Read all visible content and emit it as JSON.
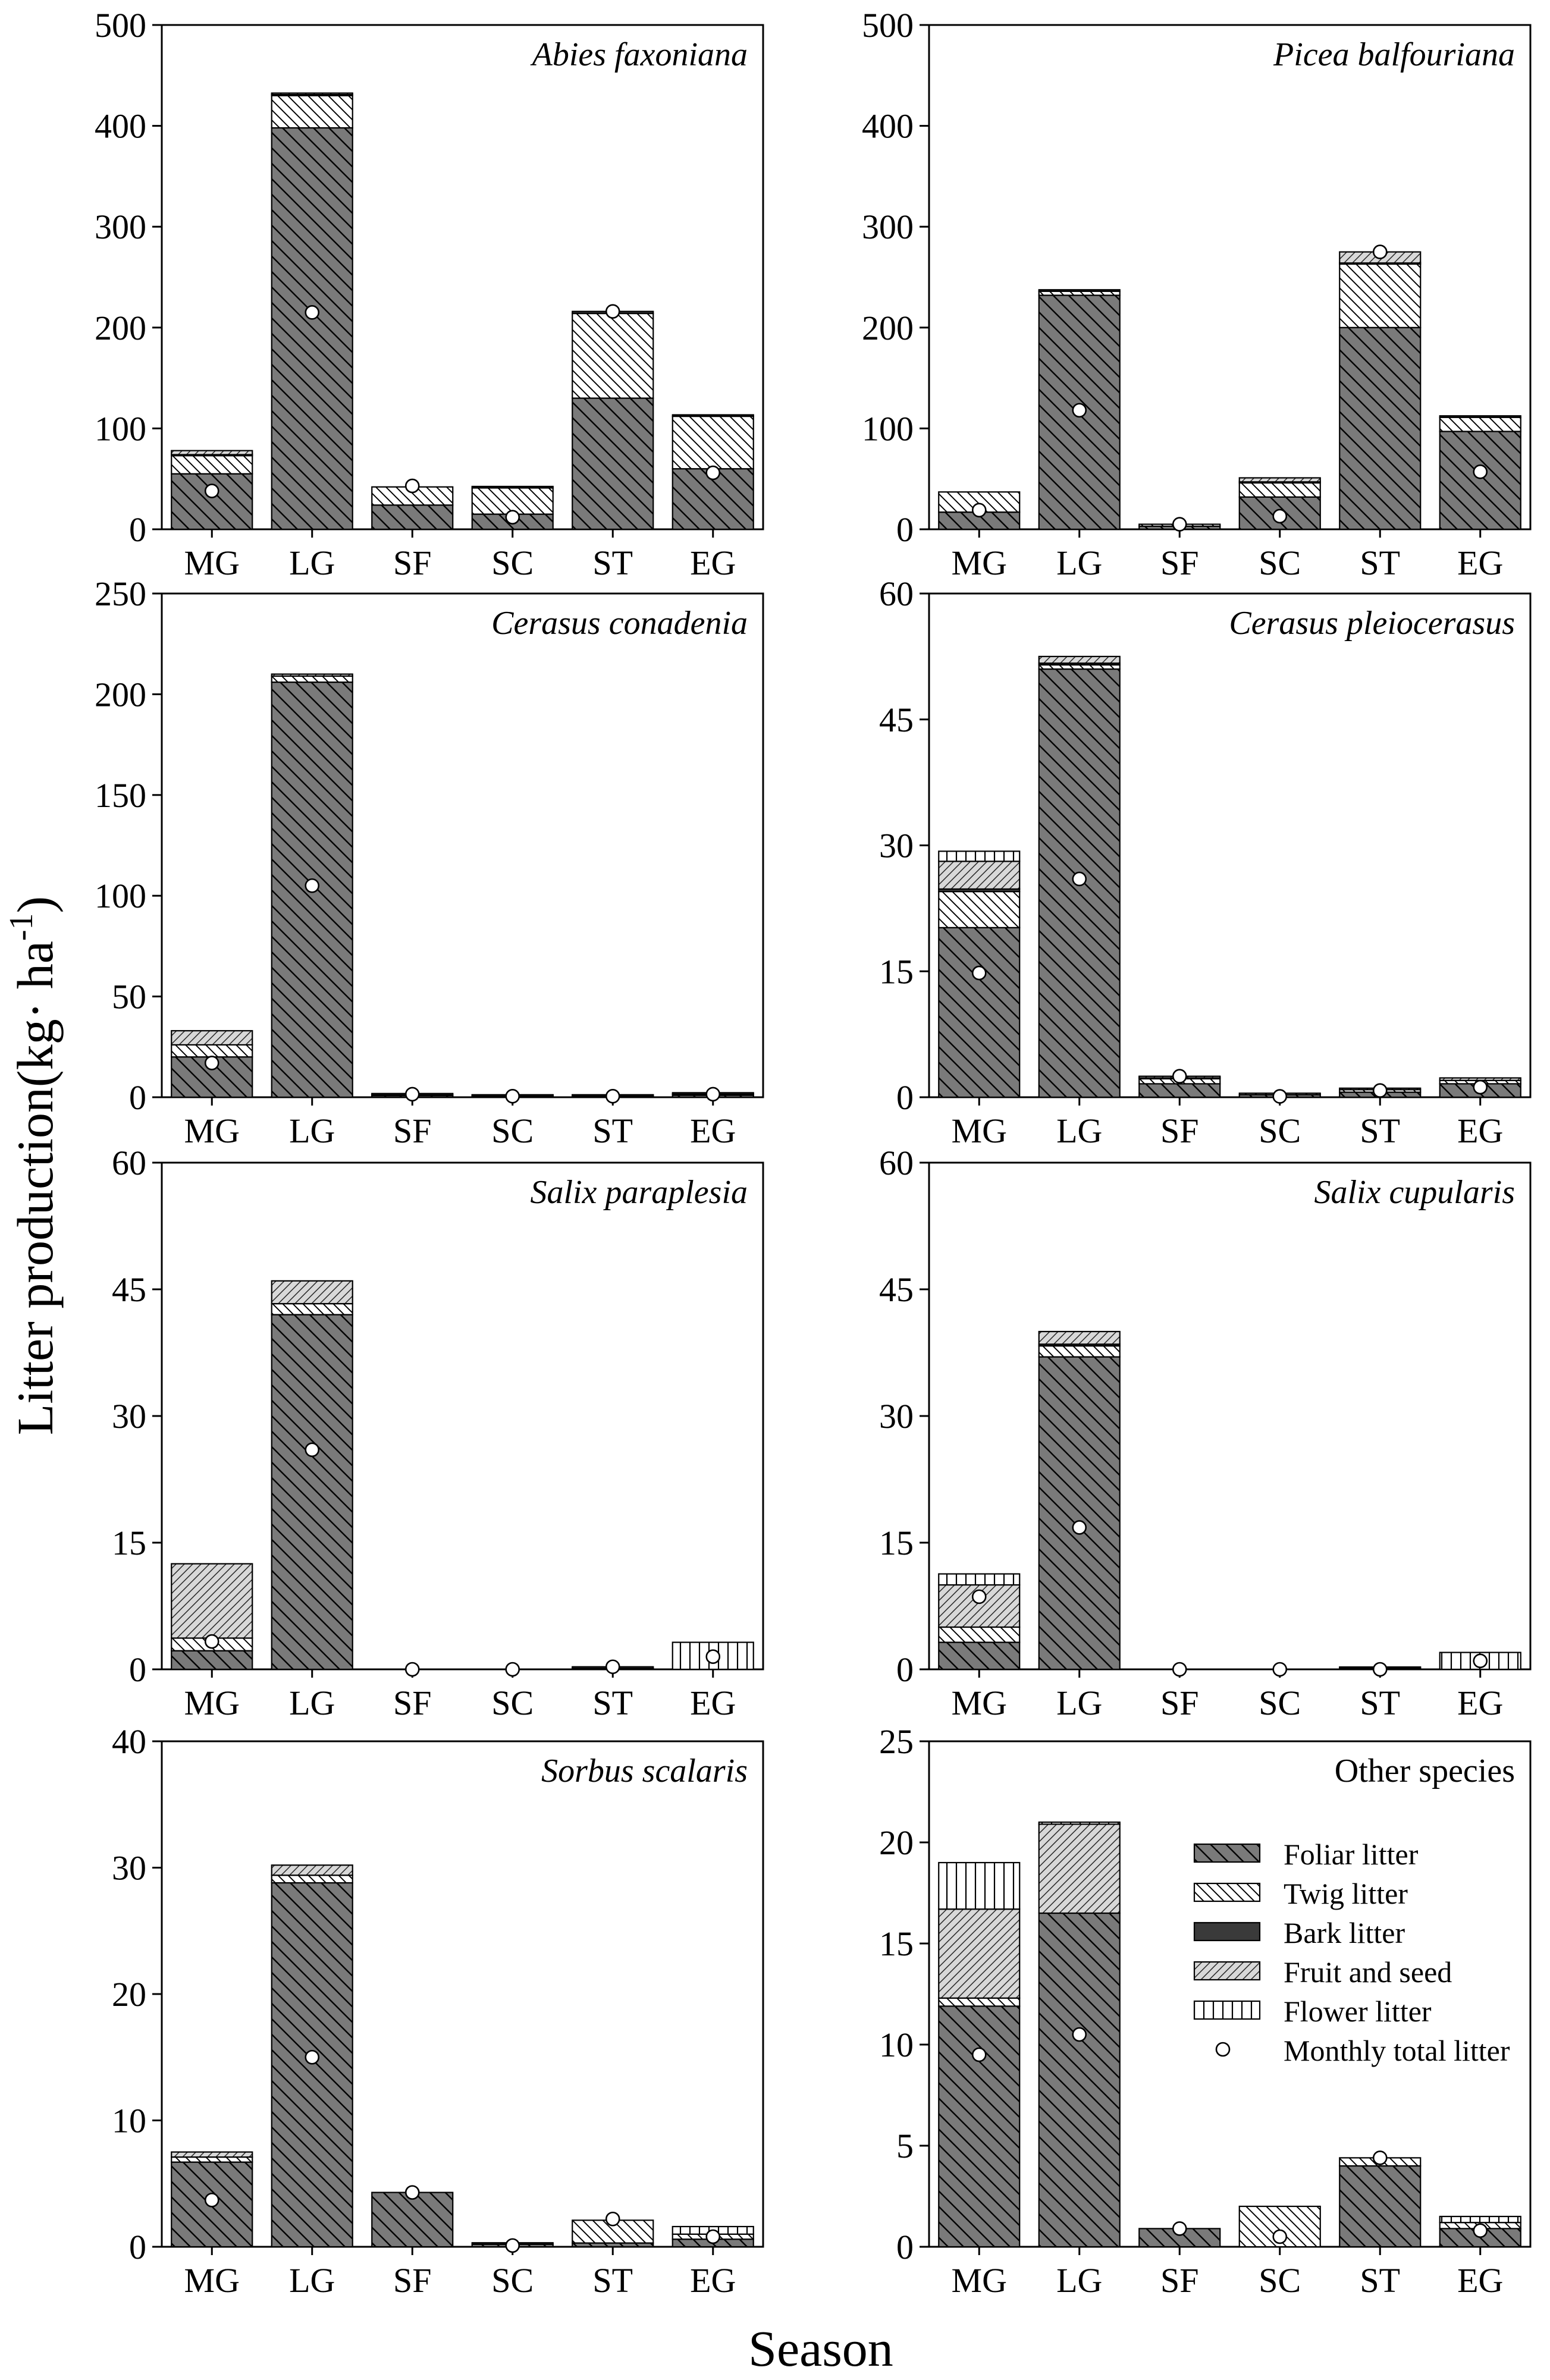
{
  "figure": {
    "ylabel": "Litter production(kg· ha-1)",
    "ylabel_main": "Litter production(kg· ha",
    "ylabel_sup": "-1",
    "ylabel_close": ")",
    "xlabel": "Season"
  },
  "colors": {
    "foliar": "#7a7a7a",
    "bark": "#3a3a3a",
    "fruit_bg": "#d8d8d8",
    "axis": "#000000"
  },
  "legend": {
    "items": [
      {
        "key": "foliar",
        "label": "Foliar litter"
      },
      {
        "key": "twig",
        "label": "Twig litter"
      },
      {
        "key": "bark",
        "label": "Bark litter"
      },
      {
        "key": "fruit",
        "label": "Fruit and seed"
      },
      {
        "key": "flower",
        "label": "Flower litter"
      },
      {
        "key": "total",
        "label": "Monthly total litter"
      }
    ]
  },
  "chart_data": [
    {
      "type": "bar",
      "stacked": true,
      "title": "Abies faxoniana",
      "italic": true,
      "categories": [
        "MG",
        "LG",
        "SF",
        "SC",
        "ST",
        "EG"
      ],
      "ylim": [
        0,
        500
      ],
      "yticks": [
        0,
        100,
        200,
        300,
        400,
        500
      ],
      "series": [
        {
          "name": "Foliar litter",
          "key": "foliar",
          "values": [
            55,
            398,
            24,
            15,
            130,
            60
          ]
        },
        {
          "name": "Twig litter",
          "key": "twig",
          "values": [
            18,
            32,
            18,
            26,
            84,
            52
          ]
        },
        {
          "name": "Bark litter",
          "key": "bark",
          "values": [
            1,
            1,
            0,
            1,
            2,
            1
          ]
        },
        {
          "name": "Fruit and seed",
          "key": "fruit",
          "values": [
            4,
            1,
            0,
            0,
            0,
            0
          ]
        },
        {
          "name": "Flower litter",
          "key": "flower",
          "values": [
            0,
            0,
            0,
            0,
            0,
            0
          ]
        }
      ],
      "monthly_total": [
        38,
        215,
        43,
        12,
        216,
        56
      ],
      "legend": false
    },
    {
      "type": "bar",
      "stacked": true,
      "title": "Picea balfouriana",
      "italic": true,
      "categories": [
        "MG",
        "LG",
        "SF",
        "SC",
        "ST",
        "EG"
      ],
      "ylim": [
        0,
        500
      ],
      "yticks": [
        0,
        100,
        200,
        300,
        400,
        500
      ],
      "series": [
        {
          "name": "Foliar litter",
          "key": "foliar",
          "values": [
            17,
            232,
            3,
            32,
            200,
            97
          ]
        },
        {
          "name": "Twig litter",
          "key": "twig",
          "values": [
            20,
            4,
            2,
            14,
            63,
            14
          ]
        },
        {
          "name": "Bark litter",
          "key": "bark",
          "values": [
            0,
            1,
            0,
            1,
            1,
            1
          ]
        },
        {
          "name": "Fruit and seed",
          "key": "fruit",
          "values": [
            0,
            0,
            0,
            4,
            11,
            0
          ]
        },
        {
          "name": "Flower litter",
          "key": "flower",
          "values": [
            0,
            0,
            0,
            0,
            0,
            0
          ]
        }
      ],
      "monthly_total": [
        19,
        118,
        5,
        13,
        275,
        57
      ],
      "legend": false
    },
    {
      "type": "bar",
      "stacked": true,
      "title": "Cerasus conadenia",
      "italic": true,
      "categories": [
        "MG",
        "LG",
        "SF",
        "SC",
        "ST",
        "EG"
      ],
      "ylim": [
        0,
        250
      ],
      "yticks": [
        0,
        50,
        100,
        150,
        200,
        250
      ],
      "series": [
        {
          "name": "Foliar litter",
          "key": "foliar",
          "values": [
            20,
            206,
            0.8,
            0.4,
            0.4,
            1.0
          ]
        },
        {
          "name": "Twig litter",
          "key": "twig",
          "values": [
            6,
            3,
            0.3,
            0.1,
            0.1,
            0.5
          ]
        },
        {
          "name": "Bark litter",
          "key": "bark",
          "values": [
            0,
            0,
            0.2,
            0.1,
            0.1,
            0.5
          ]
        },
        {
          "name": "Fruit and seed",
          "key": "fruit",
          "values": [
            7,
            1,
            0,
            0,
            0,
            0
          ]
        },
        {
          "name": "Flower litter",
          "key": "flower",
          "values": [
            0,
            0,
            0,
            0,
            0,
            0
          ]
        }
      ],
      "monthly_total": [
        17,
        105,
        1.5,
        0.5,
        0.5,
        1.5
      ],
      "legend": false
    },
    {
      "type": "bar",
      "stacked": true,
      "title": "Cerasus pleiocerasus",
      "italic": true,
      "categories": [
        "MG",
        "LG",
        "SF",
        "SC",
        "ST",
        "EG"
      ],
      "ylim": [
        0,
        60
      ],
      "yticks": [
        0,
        15,
        30,
        45,
        60
      ],
      "series": [
        {
          "name": "Foliar litter",
          "key": "foliar",
          "values": [
            20.2,
            51,
            1.6,
            0.3,
            0.6,
            1.6
          ]
        },
        {
          "name": "Twig litter",
          "key": "twig",
          "values": [
            4.3,
            0.5,
            0.6,
            0.1,
            0.3,
            0.4
          ]
        },
        {
          "name": "Bark litter",
          "key": "bark",
          "values": [
            0.3,
            0.2,
            0.1,
            0,
            0,
            0
          ]
        },
        {
          "name": "Fruit and seed",
          "key": "fruit",
          "values": [
            3.3,
            0.8,
            0.2,
            0,
            0.1,
            0.3
          ]
        },
        {
          "name": "Flower litter",
          "key": "flower",
          "values": [
            1.2,
            0,
            0,
            0,
            0,
            0
          ]
        }
      ],
      "monthly_total": [
        14.8,
        26,
        2.5,
        0.1,
        0.8,
        1.2
      ],
      "legend": false
    },
    {
      "type": "bar",
      "stacked": true,
      "title": "Salix paraplesia",
      "italic": true,
      "categories": [
        "MG",
        "LG",
        "SF",
        "SC",
        "ST",
        "EG"
      ],
      "ylim": [
        0,
        60
      ],
      "yticks": [
        0,
        15,
        30,
        45,
        60
      ],
      "series": [
        {
          "name": "Foliar litter",
          "key": "foliar",
          "values": [
            2.2,
            42,
            0,
            0,
            0.1,
            0
          ]
        },
        {
          "name": "Twig litter",
          "key": "twig",
          "values": [
            1.5,
            1.3,
            0,
            0,
            0,
            0
          ]
        },
        {
          "name": "Bark litter",
          "key": "bark",
          "values": [
            0,
            0,
            0,
            0,
            0.2,
            0
          ]
        },
        {
          "name": "Fruit and seed",
          "key": "fruit",
          "values": [
            8.8,
            2.7,
            0,
            0,
            0,
            0
          ]
        },
        {
          "name": "Flower litter",
          "key": "flower",
          "values": [
            0,
            0,
            0,
            0,
            0,
            3.2
          ]
        }
      ],
      "monthly_total": [
        3.3,
        26,
        0,
        0,
        0.3,
        1.5
      ],
      "legend": false
    },
    {
      "type": "bar",
      "stacked": true,
      "title": "Salix cupularis",
      "italic": true,
      "categories": [
        "MG",
        "LG",
        "SF",
        "SC",
        "ST",
        "EG"
      ],
      "ylim": [
        0,
        60
      ],
      "yticks": [
        0,
        15,
        30,
        45,
        60
      ],
      "series": [
        {
          "name": "Foliar litter",
          "key": "foliar",
          "values": [
            3.2,
            37,
            0,
            0,
            0.1,
            0
          ]
        },
        {
          "name": "Twig litter",
          "key": "twig",
          "values": [
            1.8,
            1.3,
            0,
            0,
            0,
            0
          ]
        },
        {
          "name": "Bark litter",
          "key": "bark",
          "values": [
            0,
            0.2,
            0,
            0,
            0.1,
            0
          ]
        },
        {
          "name": "Fruit and seed",
          "key": "fruit",
          "values": [
            5,
            1.5,
            0,
            0,
            0,
            0
          ]
        },
        {
          "name": "Flower litter",
          "key": "flower",
          "values": [
            1.3,
            0,
            0,
            0,
            0,
            2.0
          ]
        }
      ],
      "monthly_total": [
        8.6,
        16.8,
        0,
        0,
        0,
        1.0
      ],
      "legend": false
    },
    {
      "type": "bar",
      "stacked": true,
      "title": "Sorbus scalaris",
      "italic": true,
      "categories": [
        "MG",
        "LG",
        "SF",
        "SC",
        "ST",
        "EG"
      ],
      "ylim": [
        0,
        40
      ],
      "yticks": [
        0,
        10,
        20,
        30,
        40
      ],
      "series": [
        {
          "name": "Foliar litter",
          "key": "foliar",
          "values": [
            6.7,
            28.8,
            4.3,
            0.2,
            0.3,
            0.6
          ]
        },
        {
          "name": "Twig litter",
          "key": "twig",
          "values": [
            0.4,
            0.6,
            0,
            0,
            1.8,
            0.4
          ]
        },
        {
          "name": "Bark litter",
          "key": "bark",
          "values": [
            0,
            0,
            0,
            0.1,
            0,
            0
          ]
        },
        {
          "name": "Fruit and seed",
          "key": "fruit",
          "values": [
            0.4,
            0.8,
            0,
            0,
            0,
            0
          ]
        },
        {
          "name": "Flower litter",
          "key": "flower",
          "values": [
            0,
            0,
            0,
            0,
            0,
            0.6
          ]
        }
      ],
      "monthly_total": [
        3.7,
        15,
        4.3,
        0.1,
        2.2,
        0.8
      ],
      "legend": false
    },
    {
      "type": "bar",
      "stacked": true,
      "title": "Other species",
      "italic": false,
      "categories": [
        "MG",
        "LG",
        "SF",
        "SC",
        "ST",
        "EG"
      ],
      "ylim": [
        0,
        25
      ],
      "yticks": [
        0,
        5,
        10,
        15,
        20,
        25
      ],
      "series": [
        {
          "name": "Foliar litter",
          "key": "foliar",
          "values": [
            11.9,
            16.5,
            0.9,
            0,
            4.0,
            0.9
          ]
        },
        {
          "name": "Twig litter",
          "key": "twig",
          "values": [
            0.4,
            0,
            0,
            2.0,
            0.4,
            0.3
          ]
        },
        {
          "name": "Bark litter",
          "key": "bark",
          "values": [
            0,
            0,
            0,
            0,
            0,
            0
          ]
        },
        {
          "name": "Fruit and seed",
          "key": "fruit",
          "values": [
            4.4,
            4.4,
            0,
            0,
            0,
            0
          ]
        },
        {
          "name": "Flower litter",
          "key": "flower",
          "values": [
            2.3,
            0.1,
            0,
            0,
            0,
            0.3
          ]
        }
      ],
      "monthly_total": [
        9.5,
        10.5,
        0.9,
        0.5,
        4.4,
        0.8
      ],
      "legend": true
    }
  ]
}
